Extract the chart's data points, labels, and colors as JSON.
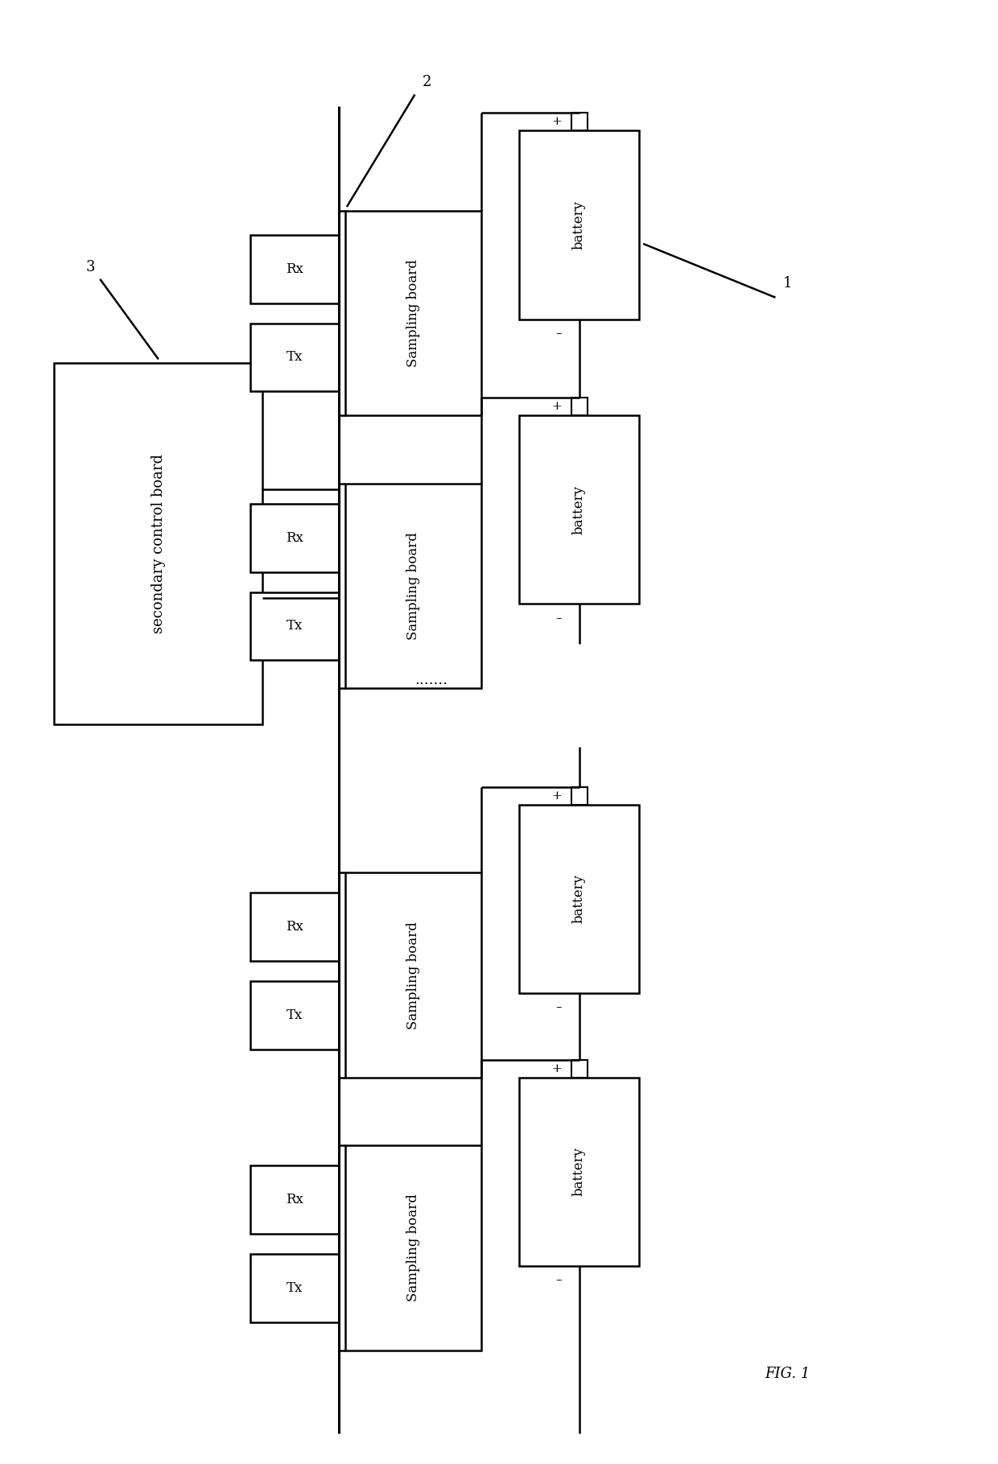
{
  "bg_color": "#ffffff",
  "fig_width": 12.4,
  "fig_height": 18.19,
  "title": "FIG. 1",
  "scb_label": "secondary control board",
  "sb_label": "Sampling board",
  "bat_label": "battery",
  "label_1": "1",
  "label_2": "2",
  "label_3": "3",
  "rx_label": "Rx",
  "tx_label": "Tx",
  "plus": "+",
  "minus": "-",
  "dots": ".......",
  "lc": "#000000"
}
